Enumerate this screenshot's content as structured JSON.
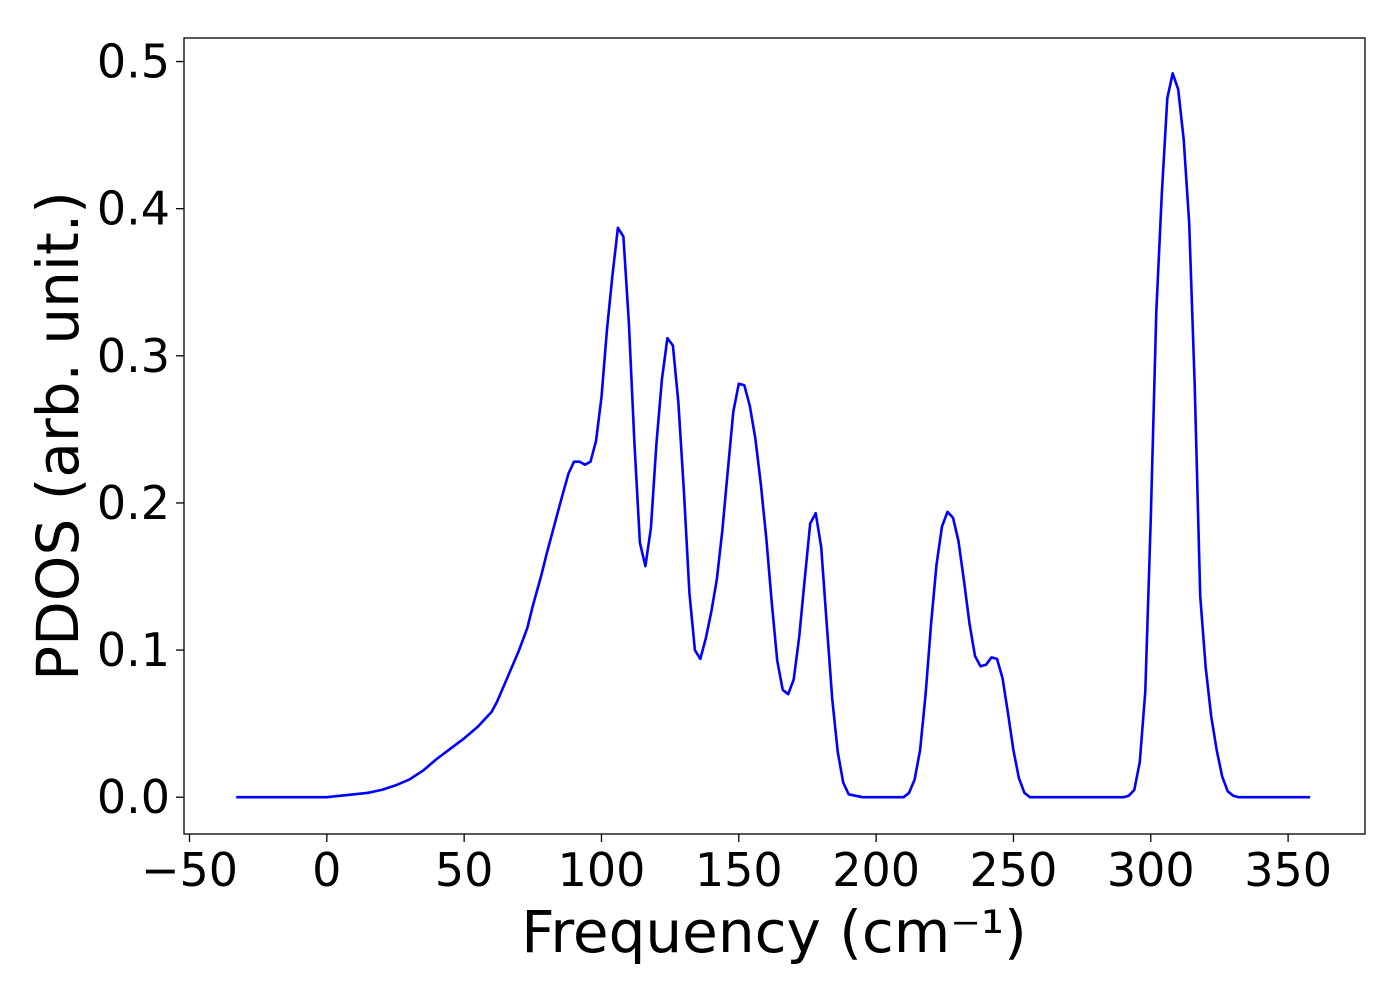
{
  "chart_data": {
    "type": "line",
    "xlabel": "Frequency (cm⁻¹)",
    "ylabel": "PDOS (arb. unit.)",
    "xlim": [
      -52,
      378
    ],
    "ylim": [
      -0.025,
      0.516
    ],
    "xticks": [
      -50,
      0,
      50,
      100,
      150,
      200,
      250,
      300,
      350
    ],
    "xtick_labels": [
      "−50",
      "0",
      "50",
      "100",
      "150",
      "200",
      "250",
      "300",
      "350"
    ],
    "yticks": [
      0.0,
      0.1,
      0.2,
      0.3,
      0.4,
      0.5
    ],
    "ytick_labels": [
      "0.0",
      "0.1",
      "0.2",
      "0.3",
      "0.4",
      "0.5"
    ],
    "grid": false,
    "series": [
      {
        "color": "#0000ff",
        "x": [
          -33,
          0,
          5,
          10,
          15,
          20,
          25,
          30,
          35,
          40,
          45,
          50,
          55,
          60,
          62,
          65,
          70,
          73,
          75,
          78,
          80,
          85,
          88,
          90,
          92,
          94,
          96,
          98,
          100,
          102,
          104,
          106,
          108,
          110,
          112,
          114,
          116,
          118,
          120,
          122,
          124,
          126,
          128,
          130,
          132,
          134,
          136,
          138,
          140,
          142,
          144,
          146,
          148,
          150,
          152,
          154,
          156,
          158,
          160,
          162,
          164,
          166,
          168,
          170,
          172,
          174,
          176,
          178,
          180,
          182,
          184,
          186,
          188,
          190,
          195,
          200,
          205,
          210,
          212,
          214,
          216,
          218,
          220,
          222,
          224,
          226,
          228,
          230,
          232,
          234,
          236,
          238,
          240,
          242,
          244,
          246,
          248,
          250,
          252,
          254,
          256,
          260,
          270,
          280,
          290,
          292,
          294,
          296,
          298,
          300,
          302,
          304,
          306,
          308,
          310,
          312,
          314,
          316,
          318,
          320,
          322,
          324,
          326,
          328,
          330,
          332,
          334,
          340,
          358
        ],
        "y": [
          0.0,
          0.0,
          0.001,
          0.002,
          0.003,
          0.005,
          0.008,
          0.012,
          0.018,
          0.026,
          0.033,
          0.04,
          0.048,
          0.058,
          0.065,
          0.078,
          0.1,
          0.115,
          0.13,
          0.15,
          0.165,
          0.2,
          0.22,
          0.228,
          0.228,
          0.226,
          0.228,
          0.242,
          0.272,
          0.318,
          0.355,
          0.387,
          0.381,
          0.322,
          0.241,
          0.173,
          0.157,
          0.183,
          0.24,
          0.284,
          0.312,
          0.307,
          0.268,
          0.208,
          0.139,
          0.1,
          0.094,
          0.108,
          0.126,
          0.148,
          0.181,
          0.222,
          0.262,
          0.281,
          0.28,
          0.266,
          0.244,
          0.213,
          0.176,
          0.132,
          0.093,
          0.073,
          0.07,
          0.08,
          0.109,
          0.148,
          0.186,
          0.193,
          0.17,
          0.118,
          0.067,
          0.031,
          0.01,
          0.002,
          0.0,
          0.0,
          0.0,
          0.0,
          0.003,
          0.012,
          0.032,
          0.07,
          0.118,
          0.158,
          0.184,
          0.194,
          0.19,
          0.174,
          0.147,
          0.118,
          0.096,
          0.089,
          0.09,
          0.095,
          0.094,
          0.081,
          0.057,
          0.032,
          0.013,
          0.003,
          0.0,
          0.0,
          0.0,
          0.0,
          0.0,
          0.001,
          0.005,
          0.024,
          0.072,
          0.19,
          0.33,
          0.41,
          0.475,
          0.492,
          0.481,
          0.447,
          0.39,
          0.28,
          0.137,
          0.088,
          0.055,
          0.032,
          0.014,
          0.004,
          0.001,
          0.0,
          0.0,
          0.0,
          0.0
        ]
      }
    ]
  }
}
